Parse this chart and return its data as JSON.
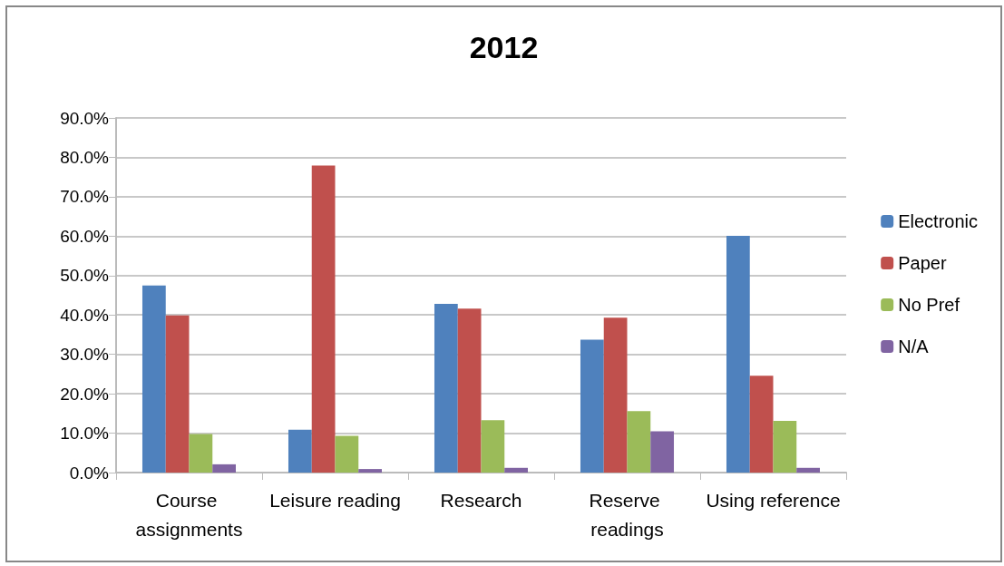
{
  "chart_data": {
    "type": "bar",
    "title": "2012",
    "categories": [
      "Course assignments",
      "Leisure reading",
      "Research",
      "Reserve readings",
      "Using reference"
    ],
    "series": [
      {
        "name": "Electronic",
        "color": "#4f81bd",
        "values": [
          47.5,
          10.9,
          42.8,
          33.7,
          60.1
        ]
      },
      {
        "name": "Paper",
        "color": "#c0504d",
        "values": [
          39.9,
          77.9,
          41.6,
          39.3,
          24.6
        ]
      },
      {
        "name": "No Pref",
        "color": "#9bbb59",
        "values": [
          9.8,
          9.3,
          13.3,
          15.6,
          13.1
        ]
      },
      {
        "name": "N/A",
        "color": "#8064a2",
        "values": [
          2.1,
          0.9,
          1.2,
          10.5,
          1.2
        ]
      }
    ],
    "ylim": [
      0,
      90
    ],
    "yticks": [
      {
        "value": 0,
        "label": "0.0%"
      },
      {
        "value": 10,
        "label": "10.0%"
      },
      {
        "value": 20,
        "label": "20.0%"
      },
      {
        "value": 30,
        "label": "30.0%"
      },
      {
        "value": 40,
        "label": "40.0%"
      },
      {
        "value": 50,
        "label": "50.0%"
      },
      {
        "value": 60,
        "label": "60.0%"
      },
      {
        "value": 70,
        "label": "70.0%"
      },
      {
        "value": 80,
        "label": "80.0%"
      },
      {
        "value": 90,
        "label": "90.0%"
      }
    ],
    "grid": "y",
    "legend": "right"
  }
}
